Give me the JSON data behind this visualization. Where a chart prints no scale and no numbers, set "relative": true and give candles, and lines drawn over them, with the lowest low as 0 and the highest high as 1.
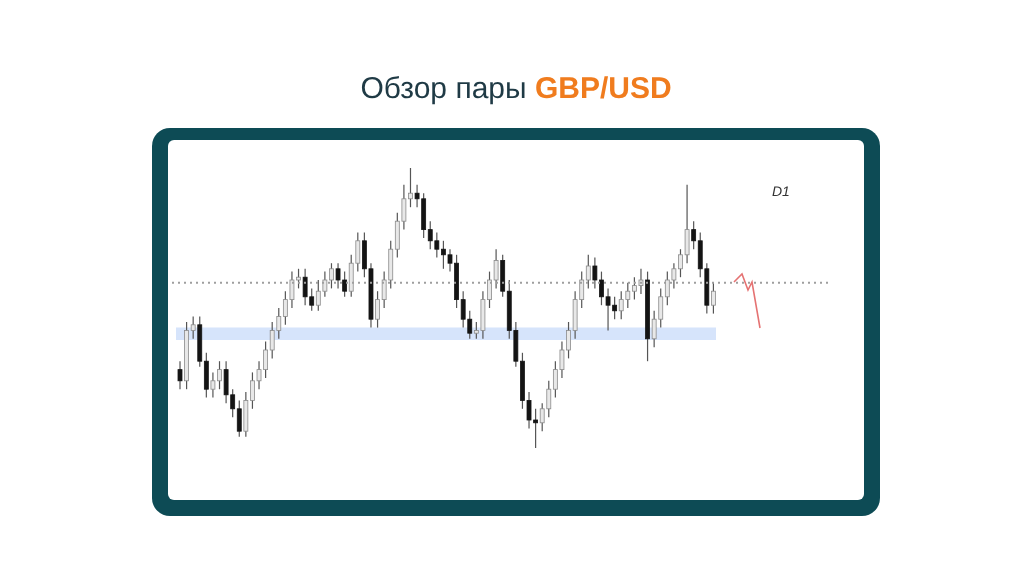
{
  "chart_data": {
    "type": "candlestick",
    "title": "Обзор пары GBP/USD",
    "annotations": [
      "D1"
    ],
    "relative": true,
    "tick_labels": false,
    "categories": [
      null,
      null,
      null,
      null,
      null,
      null,
      null,
      null,
      null,
      null,
      null,
      null,
      null,
      null,
      null,
      null,
      null,
      null,
      null,
      null,
      null,
      null,
      null,
      null,
      null,
      null,
      null,
      null,
      null,
      null,
      null,
      null,
      null,
      null,
      null,
      null,
      null,
      null,
      null,
      null,
      null,
      null,
      null,
      null,
      null,
      null,
      null,
      null,
      null,
      null,
      null,
      null,
      null,
      null,
      null,
      null,
      null,
      null,
      null,
      null,
      null,
      null,
      null,
      null,
      null,
      null,
      null,
      null,
      null,
      null,
      null,
      null,
      null,
      null,
      null,
      null,
      null,
      null,
      null,
      null,
      null,
      null
    ],
    "ohlc": [
      [
        0.28,
        0.31,
        0.21,
        0.24
      ],
      [
        0.24,
        0.45,
        0.21,
        0.42
      ],
      [
        0.42,
        0.47,
        0.39,
        0.44
      ],
      [
        0.44,
        0.47,
        0.29,
        0.31
      ],
      [
        0.31,
        0.34,
        0.18,
        0.21
      ],
      [
        0.21,
        0.27,
        0.18,
        0.24
      ],
      [
        0.24,
        0.31,
        0.21,
        0.28
      ],
      [
        0.28,
        0.31,
        0.16,
        0.19
      ],
      [
        0.19,
        0.21,
        0.11,
        0.14
      ],
      [
        0.14,
        0.17,
        0.04,
        0.06
      ],
      [
        0.06,
        0.2,
        0.04,
        0.17
      ],
      [
        0.17,
        0.27,
        0.14,
        0.24
      ],
      [
        0.24,
        0.31,
        0.21,
        0.28
      ],
      [
        0.28,
        0.38,
        0.25,
        0.35
      ],
      [
        0.35,
        0.45,
        0.32,
        0.42
      ],
      [
        0.42,
        0.5,
        0.39,
        0.47
      ],
      [
        0.47,
        0.56,
        0.44,
        0.53
      ],
      [
        0.53,
        0.63,
        0.5,
        0.6
      ],
      [
        0.6,
        0.64,
        0.57,
        0.61
      ],
      [
        0.61,
        0.64,
        0.51,
        0.54
      ],
      [
        0.54,
        0.57,
        0.49,
        0.51
      ],
      [
        0.51,
        0.6,
        0.49,
        0.56
      ],
      [
        0.56,
        0.63,
        0.54,
        0.6
      ],
      [
        0.6,
        0.66,
        0.57,
        0.64
      ],
      [
        0.64,
        0.66,
        0.57,
        0.6
      ],
      [
        0.6,
        0.63,
        0.54,
        0.56
      ],
      [
        0.56,
        0.69,
        0.54,
        0.66
      ],
      [
        0.66,
        0.77,
        0.63,
        0.74
      ],
      [
        0.74,
        0.77,
        0.61,
        0.64
      ],
      [
        0.64,
        0.66,
        0.43,
        0.46
      ],
      [
        0.46,
        0.56,
        0.43,
        0.53
      ],
      [
        0.53,
        0.63,
        0.5,
        0.6
      ],
      [
        0.6,
        0.74,
        0.57,
        0.71
      ],
      [
        0.71,
        0.84,
        0.68,
        0.81
      ],
      [
        0.81,
        0.94,
        0.78,
        0.89
      ],
      [
        0.89,
        1,
        0.86,
        0.91
      ],
      [
        0.91,
        0.94,
        0.86,
        0.89
      ],
      [
        0.89,
        0.91,
        0.75,
        0.78
      ],
      [
        0.78,
        0.81,
        0.71,
        0.74
      ],
      [
        0.74,
        0.77,
        0.68,
        0.71
      ],
      [
        0.71,
        0.74,
        0.64,
        0.69
      ],
      [
        0.69,
        0.71,
        0.63,
        0.66
      ],
      [
        0.66,
        0.69,
        0.5,
        0.53
      ],
      [
        0.53,
        0.56,
        0.43,
        0.46
      ],
      [
        0.46,
        0.49,
        0.39,
        0.41
      ],
      [
        0.41,
        0.45,
        0.39,
        0.42
      ],
      [
        0.42,
        0.56,
        0.39,
        0.53
      ],
      [
        0.53,
        0.63,
        0.5,
        0.6
      ],
      [
        0.6,
        0.71,
        0.57,
        0.67
      ],
      [
        0.67,
        0.69,
        0.54,
        0.56
      ],
      [
        0.56,
        0.6,
        0.39,
        0.42
      ],
      [
        0.42,
        0.45,
        0.29,
        0.31
      ],
      [
        0.31,
        0.34,
        0.14,
        0.17
      ],
      [
        0.17,
        0.2,
        0.07,
        0.1
      ],
      [
        0.1,
        0.14,
        0,
        0.09
      ],
      [
        0.09,
        0.16,
        0.06,
        0.14
      ],
      [
        0.14,
        0.24,
        0.11,
        0.21
      ],
      [
        0.21,
        0.31,
        0.18,
        0.28
      ],
      [
        0.28,
        0.38,
        0.25,
        0.35
      ],
      [
        0.35,
        0.45,
        0.32,
        0.42
      ],
      [
        0.42,
        0.56,
        0.39,
        0.53
      ],
      [
        0.53,
        0.63,
        0.5,
        0.6
      ],
      [
        0.6,
        0.69,
        0.57,
        0.65
      ],
      [
        0.65,
        0.68,
        0.57,
        0.6
      ],
      [
        0.6,
        0.63,
        0.51,
        0.54
      ],
      [
        0.54,
        0.57,
        0.42,
        0.51
      ],
      [
        0.51,
        0.54,
        0.46,
        0.49
      ],
      [
        0.49,
        0.56,
        0.46,
        0.53
      ],
      [
        0.53,
        0.59,
        0.5,
        0.56
      ],
      [
        0.56,
        0.61,
        0.53,
        0.58
      ],
      [
        0.58,
        0.64,
        0.55,
        0.6
      ],
      [
        0.6,
        0.63,
        0.31,
        0.39
      ],
      [
        0.39,
        0.49,
        0.36,
        0.46
      ],
      [
        0.46,
        0.57,
        0.43,
        0.54
      ],
      [
        0.54,
        0.63,
        0.51,
        0.6
      ],
      [
        0.6,
        0.66,
        0.57,
        0.64
      ],
      [
        0.64,
        0.71,
        0.61,
        0.69
      ],
      [
        0.69,
        0.94,
        0.66,
        0.78
      ],
      [
        0.78,
        0.81,
        0.71,
        0.74
      ],
      [
        0.74,
        0.77,
        0.61,
        0.64
      ],
      [
        0.64,
        0.66,
        0.48,
        0.51
      ],
      [
        0.51,
        0.59,
        0.48,
        0.56
      ]
    ],
    "colors": [
      "#141414",
      "#e8e8e8",
      "#e8e8e8",
      "#141414",
      "#141414",
      "#e8e8e8",
      "#e8e8e8",
      "#141414",
      "#141414",
      "#141414",
      "#e8e8e8",
      "#e8e8e8",
      "#e8e8e8",
      "#e8e8e8",
      "#e8e8e8",
      "#e8e8e8",
      "#e8e8e8",
      "#e8e8e8",
      "#e8e8e8",
      "#141414",
      "#141414",
      "#e8e8e8",
      "#e8e8e8",
      "#e8e8e8",
      "#141414",
      "#141414",
      "#e8e8e8",
      "#e8e8e8",
      "#141414",
      "#141414",
      "#e8e8e8",
      "#e8e8e8",
      "#e8e8e8",
      "#e8e8e8",
      "#e8e8e8",
      "#e8e8e8",
      "#141414",
      "#141414",
      "#141414",
      "#141414",
      "#141414",
      "#141414",
      "#141414",
      "#141414",
      "#141414",
      "#e8e8e8",
      "#e8e8e8",
      "#e8e8e8",
      "#e8e8e8",
      "#141414",
      "#141414",
      "#141414",
      "#141414",
      "#141414",
      "#141414",
      "#e8e8e8",
      "#e8e8e8",
      "#e8e8e8",
      "#e8e8e8",
      "#e8e8e8",
      "#e8e8e8",
      "#e8e8e8",
      "#e8e8e8",
      "#141414",
      "#141414",
      "#141414",
      "#141414",
      "#e8e8e8",
      "#e8e8e8",
      "#e8e8e8",
      "#e8e8e8",
      "#141414",
      "#e8e8e8",
      "#e8e8e8",
      "#e8e8e8",
      "#e8e8e8",
      "#e8e8e8",
      "#e8e8e8",
      "#141414",
      "#141414",
      "#141414",
      "#e8e8e8"
    ],
    "ref_lines": [
      {
        "axis": "y",
        "value": 0.59,
        "color": "#9e9e9e",
        "line_style": "dotted"
      }
    ],
    "bands": [
      {
        "axis": "y",
        "from": 0.386,
        "to": 0.43,
        "color": "#d6e4fb"
      }
    ]
  }
}
